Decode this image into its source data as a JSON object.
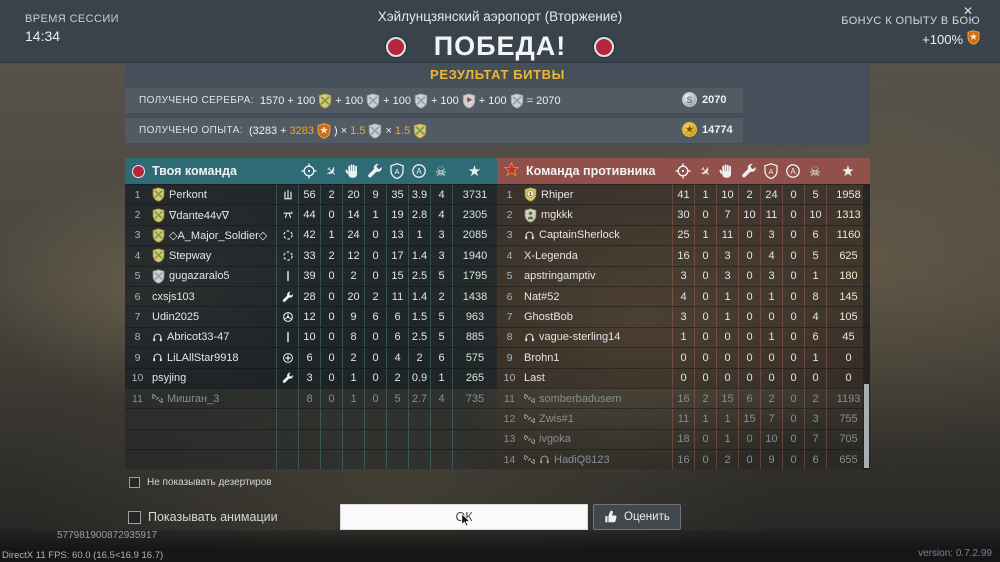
{
  "header": {
    "session_label": "ВРЕМЯ СЕССИИ",
    "session_time": "14:34",
    "map_title": "Хэйлунцзянский аэропорт (Вторжение)",
    "victory_text": "ПОБЕДА!",
    "bonus_label": "БОНУС К ОПЫТУ В БОЮ",
    "bonus_value": "+100%",
    "close_glyph": "✕"
  },
  "results": {
    "title": "РЕЗУЛЬТАТ БИТВЫ",
    "silver": {
      "label": "ПОЛУЧЕНО СЕРЕБРА:",
      "base": "1570",
      "bonus_values": [
        "100",
        "100",
        "100",
        "100",
        "100"
      ],
      "bonus_icons": [
        "shield-gold",
        "shield-silver",
        "shield-silver",
        "shield-flag",
        "shield-silver"
      ],
      "equals_text": "= 2070",
      "total": "2070",
      "coin_icon": "silver-coin"
    },
    "xp": {
      "label": "ПОЛУЧЕНО ОПЫТА:",
      "open": "(3283 +",
      "bonus": "3283",
      "bonus_icon": "star-badge",
      "close": ")",
      "multipliers": [
        "1.5",
        "1.5"
      ],
      "multiplier_icons": [
        "shield-silver",
        "shield-gold"
      ],
      "total": "14774",
      "coin_icon": "gold-coin"
    }
  },
  "columns": [
    {
      "name": "kills",
      "icon": "crosshair"
    },
    {
      "name": "vehicle-kills",
      "icon": "plane"
    },
    {
      "name": "assists",
      "icon": "hand"
    },
    {
      "name": "repairs",
      "icon": "wrench"
    },
    {
      "name": "defense-shield",
      "icon": "shield-a"
    },
    {
      "name": "accuracy",
      "icon": "circle-a"
    },
    {
      "name": "deaths",
      "icon": "skull"
    },
    {
      "name": "score",
      "icon": "star"
    }
  ],
  "teams": {
    "ally": {
      "title": "Твоя команда",
      "rows": [
        {
          "rank": "1",
          "name": "Perkont",
          "clan": "shield-gold",
          "role": "aa",
          "stats": [
            "56",
            "2",
            "20",
            "9",
            "35",
            "3.9",
            "4",
            "3731"
          ]
        },
        {
          "rank": "2",
          "name": "∇dante44v∇",
          "clan": "shield-gold",
          "role": "mg",
          "stats": [
            "44",
            "0",
            "14",
            "1",
            "19",
            "2.8",
            "4",
            "2305"
          ]
        },
        {
          "rank": "3",
          "name": "◇A_Major_Soldier◇",
          "clan": "shield-gold",
          "role": "scope",
          "stats": [
            "42",
            "1",
            "24",
            "0",
            "13",
            "1",
            "3",
            "2085"
          ]
        },
        {
          "rank": "4",
          "name": "Stepway",
          "clan": "shield-gold",
          "role": "scope",
          "stats": [
            "33",
            "2",
            "12",
            "0",
            "17",
            "1.4",
            "3",
            "1940"
          ]
        },
        {
          "rank": "5",
          "name": "gugazaralo5",
          "clan": "shield-silver",
          "role": "rifle",
          "stats": [
            "39",
            "0",
            "2",
            "0",
            "15",
            "2.5",
            "5",
            "1795"
          ]
        },
        {
          "rank": "6",
          "name": "cxsjs103",
          "role": "wrench",
          "stats": [
            "28",
            "0",
            "20",
            "2",
            "11",
            "1.4",
            "2",
            "1438"
          ]
        },
        {
          "rank": "7",
          "name": "Udin2025",
          "role": "wheel",
          "stats": [
            "12",
            "0",
            "9",
            "6",
            "6",
            "1.5",
            "5",
            "963"
          ]
        },
        {
          "rank": "8",
          "name": "Abricot33-47",
          "badges": [
            "headphones"
          ],
          "role": "rifle",
          "stats": [
            "10",
            "0",
            "8",
            "0",
            "6",
            "2.5",
            "5",
            "885"
          ]
        },
        {
          "rank": "9",
          "name": "LiLAllStar9918",
          "badges": [
            "headphones"
          ],
          "role": "plus",
          "stats": [
            "6",
            "0",
            "2",
            "0",
            "4",
            "2",
            "6",
            "575"
          ]
        },
        {
          "rank": "10",
          "name": "psyjing",
          "role": "wrench",
          "stats": [
            "3",
            "0",
            "1",
            "0",
            "2",
            "0.9",
            "1",
            "265"
          ]
        },
        {
          "rank": "11",
          "name": "Мишган_3",
          "badges": [
            "disconnect"
          ],
          "deserter": true,
          "stats": [
            "8",
            "0",
            "1",
            "0",
            "5",
            "2.7",
            "4",
            "735"
          ]
        }
      ]
    },
    "enemy": {
      "title": "Команда противника",
      "rows": [
        {
          "rank": "1",
          "name": "Rhiper",
          "clan": "shield-medal1",
          "stats": [
            "41",
            "1",
            "10",
            "2",
            "24",
            "0",
            "5",
            "1958"
          ]
        },
        {
          "rank": "2",
          "name": "mgkkk",
          "clan": "shield-soldier",
          "stats": [
            "30",
            "0",
            "7",
            "10",
            "11",
            "0",
            "10",
            "1313"
          ]
        },
        {
          "rank": "3",
          "name": "CaptainSherlock",
          "badges": [
            "headphones"
          ],
          "stats": [
            "25",
            "1",
            "11",
            "0",
            "3",
            "0",
            "6",
            "1160"
          ]
        },
        {
          "rank": "4",
          "name": "X-Legenda",
          "stats": [
            "16",
            "0",
            "3",
            "0",
            "4",
            "0",
            "5",
            "625"
          ]
        },
        {
          "rank": "5",
          "name": "apstringamptiv",
          "stats": [
            "3",
            "0",
            "3",
            "0",
            "3",
            "0",
            "1",
            "180"
          ]
        },
        {
          "rank": "6",
          "name": "Nat#52",
          "stats": [
            "4",
            "0",
            "1",
            "0",
            "1",
            "0",
            "8",
            "145"
          ]
        },
        {
          "rank": "7",
          "name": "GhostBob",
          "stats": [
            "3",
            "0",
            "1",
            "0",
            "0",
            "0",
            "4",
            "105"
          ]
        },
        {
          "rank": "8",
          "name": "vague-sterling14",
          "badges": [
            "headphones"
          ],
          "stats": [
            "1",
            "0",
            "0",
            "0",
            "1",
            "0",
            "6",
            "45"
          ]
        },
        {
          "rank": "9",
          "name": "Brohn1",
          "stats": [
            "0",
            "0",
            "0",
            "0",
            "0",
            "0",
            "1",
            "0"
          ]
        },
        {
          "rank": "10",
          "name": "Last",
          "stats": [
            "0",
            "0",
            "0",
            "0",
            "0",
            "0",
            "0",
            "0"
          ]
        },
        {
          "rank": "11",
          "name": "somberbadusern",
          "badges": [
            "disconnect"
          ],
          "deserter": true,
          "stats": [
            "16",
            "2",
            "15",
            "6",
            "2",
            "0",
            "2",
            "1193"
          ]
        },
        {
          "rank": "12",
          "name": "Zwis#1",
          "badges": [
            "disconnect"
          ],
          "deserter": true,
          "stats": [
            "11",
            "1",
            "1",
            "15",
            "7",
            "0",
            "3",
            "755"
          ]
        },
        {
          "rank": "13",
          "name": "ivgoka",
          "badges": [
            "disconnect"
          ],
          "deserter": true,
          "stats": [
            "18",
            "0",
            "1",
            "0",
            "10",
            "0",
            "7",
            "705"
          ]
        },
        {
          "rank": "14",
          "name": "HadiQ8123",
          "badges": [
            "disconnect",
            "headphones"
          ],
          "deserter": true,
          "stats": [
            "16",
            "0",
            "2",
            "0",
            "9",
            "0",
            "6",
            "655"
          ]
        }
      ]
    }
  },
  "footer": {
    "checkbox_deserters": "Не показывать дезертиров",
    "checkbox_animations": "Показывать анимации",
    "ok_label": "ОК",
    "rate_label": "Оценить",
    "session_id": "577981900872935917",
    "fps_line": "DirectX 11 FPS: 60.0 (16.5<16.9 16.7)",
    "version": "version: 0.7.2.99"
  },
  "colors": {
    "ally_header": "#2e6b74",
    "enemy_header": "#92504a",
    "accent_gold": "#ecb735",
    "victory_red": "#b5273a"
  }
}
